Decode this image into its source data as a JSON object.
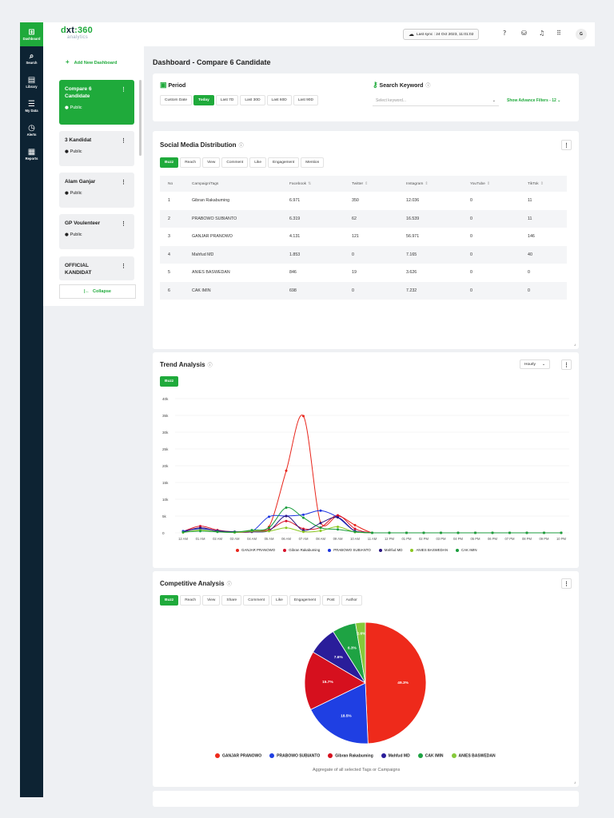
{
  "rail": [
    {
      "label": "Dashboard",
      "icon": "grid-icon",
      "glyph": "⊞"
    },
    {
      "label": "Search",
      "icon": "search-icon",
      "glyph": "⌕"
    },
    {
      "label": "Library",
      "icon": "library-icon",
      "glyph": "▤"
    },
    {
      "label": "My Data",
      "icon": "list-icon",
      "glyph": "☰"
    },
    {
      "label": "Alerts",
      "icon": "alert-icon",
      "glyph": "◷"
    },
    {
      "label": "Reports",
      "icon": "report-icon",
      "glyph": "▦"
    }
  ],
  "brand": {
    "name_a": "d",
    "name_x": "xt",
    "name_b": ":360",
    "sub": "analytics",
    "green": "#1faa3b",
    "navy": "#0d2333"
  },
  "topbar": {
    "sync": "Last sync : 24 Oct 2023, 11:01:02",
    "avatar": "G"
  },
  "sidebar": {
    "add_label": "Add New Dashboard",
    "collapse_label": "Collapse",
    "dashboards": [
      {
        "title": "Compare 6 Candidate",
        "visibility": "Public"
      },
      {
        "title": "3 Kandidat",
        "visibility": "Public"
      },
      {
        "title": "Alam Ganjar",
        "visibility": "Public"
      },
      {
        "title": "GP Voulenteer",
        "visibility": "Public"
      },
      {
        "title": "OFFICIAL KANDIDAT",
        "visibility": ""
      }
    ]
  },
  "page": {
    "title": "Dashboard - Compare 6 Candidate"
  },
  "period": {
    "title": "Period",
    "options": [
      "Custom Date",
      "Today",
      "Last 7D",
      "Last 30D",
      "Last 60D",
      "Last 90D"
    ]
  },
  "keyword": {
    "title": "Search Keyword",
    "placeholder": "Select keyword...",
    "advance": "Show Advance Filters - 12"
  },
  "social": {
    "title": "Social Media Distribution",
    "tabs": [
      "Buzz",
      "Reach",
      "View",
      "Comment",
      "Like",
      "Engagement",
      "Mention"
    ],
    "columns": [
      "No",
      "Campaign/Tags",
      "Facebook",
      "Twitter",
      "Instagram",
      "YouTube",
      "TikTok"
    ],
    "rows": [
      [
        "1",
        "Gibran Rakabuming",
        "6.971",
        "350",
        "12.036",
        "0",
        "11"
      ],
      [
        "2",
        "PRABOWO SUBIANTO",
        "6.319",
        "62",
        "16.539",
        "0",
        "11"
      ],
      [
        "3",
        "GANJAR PRANOWO",
        "4.131",
        "121",
        "56.971",
        "0",
        "146"
      ],
      [
        "4",
        "Mahfud MD",
        "1.853",
        "0",
        "7.165",
        "0",
        "40"
      ],
      [
        "5",
        "ANIES BASWEDAN",
        "846",
        "19",
        "3.626",
        "0",
        "0"
      ],
      [
        "6",
        "CAK IMIN",
        "698",
        "0",
        "7.232",
        "0",
        "0"
      ]
    ]
  },
  "trend": {
    "title": "Trend Analysis",
    "tab": "Buzz",
    "granularity": "Hourly"
  },
  "competitive": {
    "title": "Competitive Analysis",
    "tabs": [
      "Buzz",
      "Reach",
      "View",
      "Share",
      "Comment",
      "Like",
      "Engagement",
      "Post",
      "Author"
    ],
    "caption": "Aggregate of all selected Tags or Campaigns"
  },
  "chart_data": [
    {
      "type": "line",
      "x": [
        "12 AM",
        "01 AM",
        "02 AM",
        "03 AM",
        "04 AM",
        "05 AM",
        "06 AM",
        "07 AM",
        "08 AM",
        "09 AM",
        "10 AM",
        "11 AM",
        "12 PM",
        "01 PM",
        "02 PM",
        "03 PM",
        "04 PM",
        "05 PM",
        "06 PM",
        "07 PM",
        "08 PM",
        "09 PM",
        "10 PM"
      ],
      "ylim": [
        0,
        40000
      ],
      "yticks": [
        0,
        5000,
        10000,
        15000,
        20000,
        25000,
        30000,
        35000,
        40000
      ],
      "ytick_labels": [
        "0",
        "5k",
        "10k",
        "15k",
        "20k",
        "25k",
        "30k",
        "35k",
        "40k"
      ],
      "series": [
        {
          "name": "GANJAR PRANOWO",
          "color": "#e8261c",
          "values": [
            300,
            1500,
            500,
            200,
            300,
            1800,
            18500,
            34800,
            3000,
            5000,
            2300,
            0,
            0,
            0,
            0,
            0,
            0,
            0,
            0,
            0,
            0,
            0,
            0
          ]
        },
        {
          "name": "Gibran Rakabuming",
          "color": "#d8102a",
          "values": [
            400,
            2000,
            800,
            300,
            500,
            900,
            3500,
            1200,
            1600,
            5200,
            1200,
            0,
            0,
            0,
            0,
            0,
            0,
            0,
            0,
            0,
            0,
            0,
            0
          ]
        },
        {
          "name": "PRABOWO SUBIANTO",
          "color": "#1c35e0",
          "values": [
            500,
            1200,
            600,
            300,
            400,
            4800,
            5000,
            5400,
            6600,
            4600,
            500,
            0,
            0,
            0,
            0,
            0,
            0,
            0,
            0,
            0,
            0,
            0,
            0
          ]
        },
        {
          "name": "Mahfud MD",
          "color": "#2a1580",
          "values": [
            200,
            1500,
            500,
            300,
            300,
            600,
            5000,
            700,
            2900,
            4600,
            500,
            0,
            0,
            0,
            0,
            0,
            0,
            0,
            0,
            0,
            0,
            0,
            0
          ]
        },
        {
          "name": "ANIES BASWEDAN",
          "color": "#8bc820",
          "values": [
            100,
            800,
            300,
            100,
            500,
            500,
            1500,
            300,
            600,
            1800,
            200,
            0,
            0,
            0,
            0,
            0,
            0,
            0,
            0,
            0,
            0,
            0,
            0
          ]
        },
        {
          "name": "CAK IMIN",
          "color": "#1b9e3e",
          "values": [
            200,
            500,
            300,
            200,
            800,
            1500,
            7500,
            4500,
            1500,
            1000,
            300,
            0,
            0,
            0,
            0,
            0,
            0,
            0,
            0,
            0,
            0,
            0,
            0
          ]
        }
      ]
    },
    {
      "type": "pie",
      "slices": [
        {
          "name": "GANJAR PRANOWO",
          "value": 49.3,
          "label": "49.3%",
          "color": "#ee2a1b"
        },
        {
          "name": "PRABOWO SUBIANTO",
          "value": 18.5,
          "label": "18.5%",
          "color": "#1f3fe3"
        },
        {
          "name": "Gibran Rakabuming",
          "value": 15.7,
          "label": "15.7%",
          "color": "#d6101e"
        },
        {
          "name": "Mahfud MD",
          "value": 7.6,
          "label": "7.6%",
          "color": "#2a1d9a"
        },
        {
          "name": "CAK IMIN",
          "value": 6.3,
          "label": "6.3%",
          "color": "#1ea343"
        },
        {
          "name": "ANIES BASWEDAN",
          "value": 2.6,
          "label": "2.6%",
          "color": "#86c93a"
        }
      ],
      "start_angle_deg": 0
    }
  ]
}
